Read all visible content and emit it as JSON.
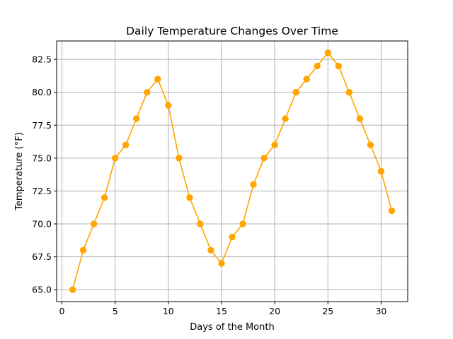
{
  "chart_data": {
    "type": "line",
    "title": "Daily Temperature Changes Over Time",
    "xlabel": "Days of the Month",
    "ylabel": "Temperature (°F)",
    "x": [
      1,
      2,
      3,
      4,
      5,
      6,
      7,
      8,
      9,
      10,
      11,
      12,
      13,
      14,
      15,
      16,
      17,
      18,
      19,
      20,
      21,
      22,
      23,
      24,
      25,
      26,
      27,
      28,
      29,
      30,
      31
    ],
    "series": [
      {
        "values": [
          65,
          68,
          70,
          72,
          75,
          76,
          78,
          80,
          81,
          79,
          75,
          72,
          70,
          68,
          67,
          69,
          70,
          73,
          75,
          76,
          78,
          80,
          81,
          82,
          83,
          82,
          80,
          78,
          76,
          74,
          71
        ],
        "color": "#ffa500",
        "marker": "circle"
      }
    ],
    "xlim": [
      -0.5,
      32.5
    ],
    "ylim": [
      64.1,
      83.9
    ],
    "xticks": [
      0,
      5,
      10,
      15,
      20,
      25,
      30
    ],
    "xtick_labels": [
      "0",
      "5",
      "10",
      "15",
      "20",
      "25",
      "30"
    ],
    "yticks": [
      65.0,
      67.5,
      70.0,
      72.5,
      75.0,
      77.5,
      80.0,
      82.5
    ],
    "ytick_labels": [
      "65.0",
      "67.5",
      "70.0",
      "72.5",
      "75.0",
      "77.5",
      "80.0",
      "82.5"
    ],
    "grid": true,
    "grid_color": "#b0b0b0",
    "axis_color": "#000000"
  }
}
